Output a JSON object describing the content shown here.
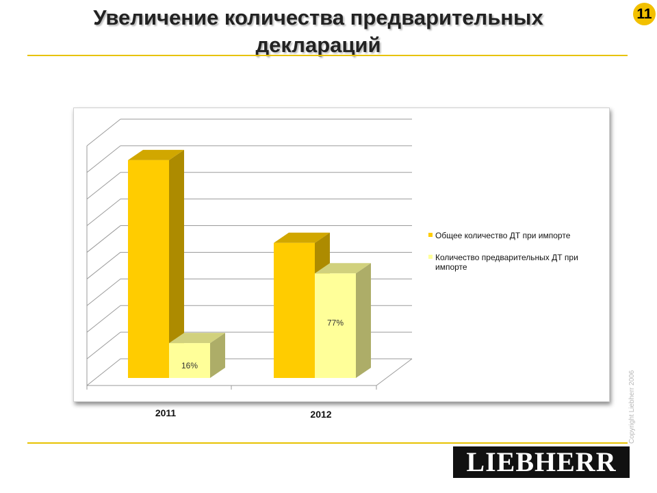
{
  "slide": {
    "title_line1": "Увеличение количества предварительных",
    "title_line2": "деклараций",
    "page_number": "11",
    "copyright": "Copyright Liebherr 2006",
    "logo_text": "LIEBHERR"
  },
  "colors": {
    "accent": "#e7c200",
    "series_total": "#ffcc00",
    "series_preliminary": "#ffff99"
  },
  "chart_data": {
    "type": "bar",
    "categories": [
      "2011",
      "2012"
    ],
    "series": [
      {
        "name": "Общее количество ДТ при импорте",
        "values": [
          100,
          62
        ],
        "labels": [
          "",
          ""
        ]
      },
      {
        "name": "Количество предварительных ДТ при импорте",
        "values": [
          16,
          48
        ],
        "labels": [
          "16%",
          "77%"
        ]
      }
    ],
    "ylim": [
      0,
      110
    ],
    "y_gridlines": 9,
    "grid": true,
    "legend_position": "right",
    "style": "3d-column"
  }
}
